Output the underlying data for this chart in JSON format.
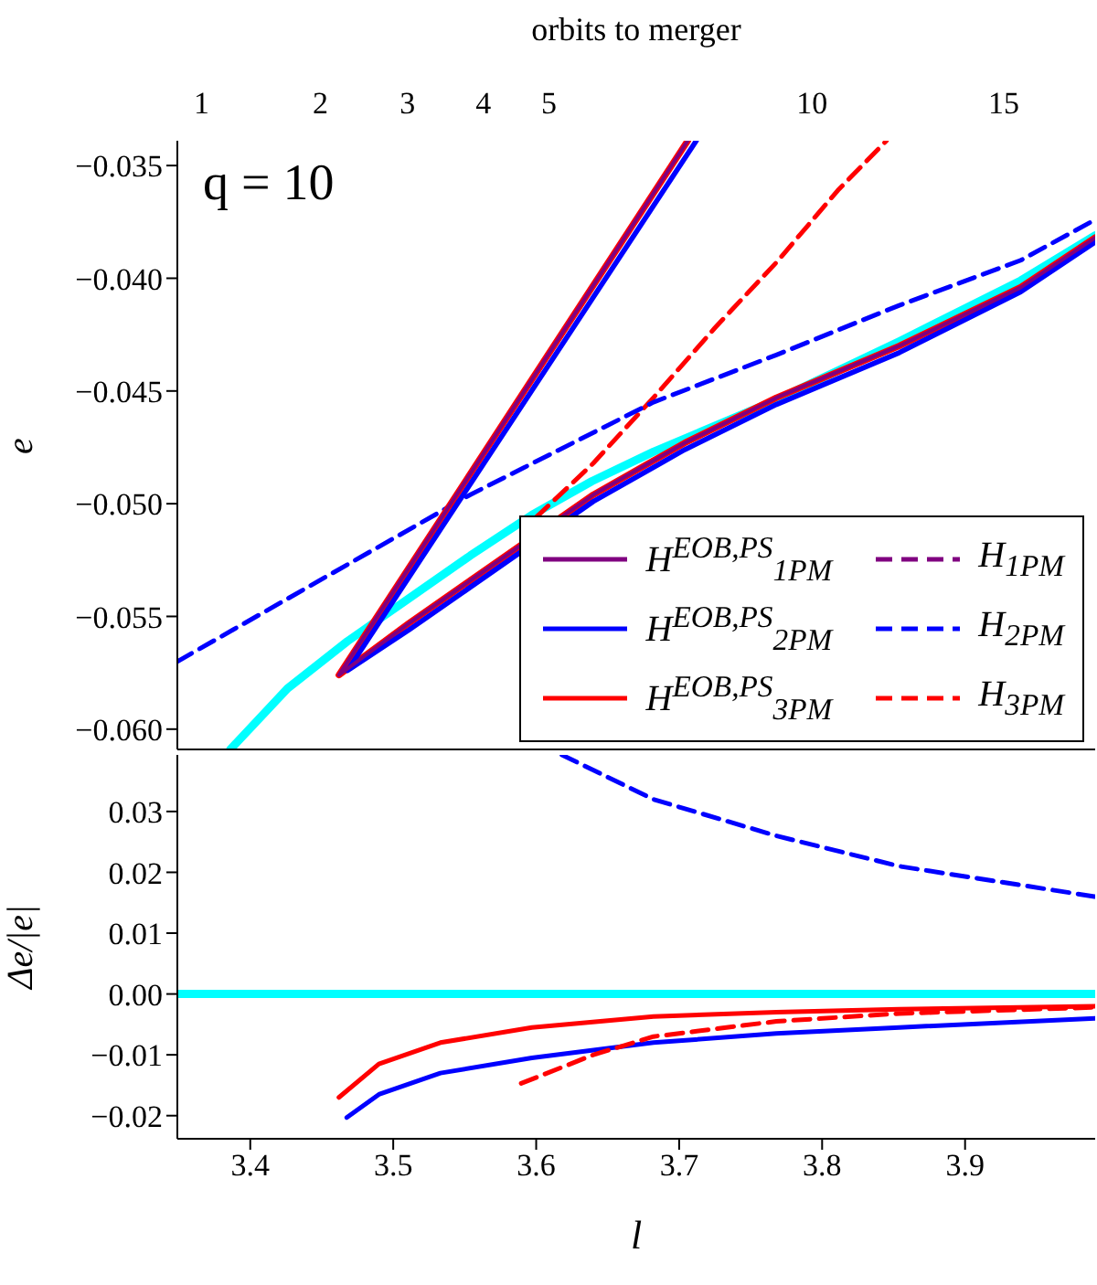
{
  "chart_data": [
    {
      "type": "line",
      "ylabel": "e",
      "x2label": "orbits to merger",
      "annotations": [
        "q = 10",
        "1",
        "2",
        "3",
        "4",
        "5",
        "10",
        "15"
      ],
      "xlim": [
        3.349,
        3.991
      ],
      "xticks": [
        3.4,
        3.5,
        3.6,
        3.7,
        3.8,
        3.9
      ],
      "ylim": [
        -0.0609,
        -0.0339
      ],
      "yticks": [
        {
          "value": -0.035,
          "label": "−0.035"
        },
        {
          "value": -0.04,
          "label": "−0.040"
        },
        {
          "value": -0.045,
          "label": "−0.045"
        },
        {
          "value": -0.05,
          "label": "−0.050"
        },
        {
          "value": -0.055,
          "label": "−0.055"
        },
        {
          "value": -0.06,
          "label": "−0.060"
        }
      ],
      "tick_labels": "y",
      "grid": false,
      "legend": "bottom right",
      "series": [
        {
          "color": "#00ffff",
          "x": [
            3.386,
            3.426,
            3.468,
            3.511,
            3.554,
            3.597,
            3.639,
            3.682,
            3.768,
            3.854,
            3.939,
            3.991
          ],
          "values": [
            -0.0609,
            -0.0582,
            -0.0561,
            -0.0542,
            -0.0523,
            -0.0505,
            -0.049,
            -0.0477,
            -0.0454,
            -0.0428,
            -0.0401,
            -0.0381
          ]
        },
        {
          "name": "H$^{EOB,PS}$$_{1PM}$",
          "color": "#800080",
          "line_style": "solid",
          "x": [
            3.706,
            3.462,
            3.511,
            3.554,
            3.64,
            3.704,
            3.768,
            3.854,
            3.939,
            3.991
          ],
          "values": [
            -0.0339,
            -0.0576,
            -0.0553,
            -0.0534,
            -0.0496,
            -0.0473,
            -0.0453,
            -0.043,
            -0.0404,
            -0.0382
          ]
        },
        {
          "name": "H$^{EOB,PS}$$_{2PM}$",
          "color": "#0000ff",
          "line_style": "solid",
          "x": [
            3.712,
            3.468,
            3.511,
            3.554,
            3.64,
            3.704,
            3.768,
            3.854,
            3.939,
            3.991
          ],
          "values": [
            -0.0339,
            -0.0574,
            -0.0556,
            -0.0537,
            -0.0499,
            -0.0476,
            -0.0456,
            -0.0433,
            -0.0406,
            -0.0384
          ]
        },
        {
          "name": "H$^{EOB,PS}$$_{3PM}$",
          "color": "#ff0000",
          "line_style": "solid",
          "x": [
            3.706,
            3.462,
            3.511,
            3.554,
            3.64,
            3.704,
            3.768,
            3.854,
            3.939,
            3.991
          ],
          "values": [
            -0.0339,
            -0.0576,
            -0.0553,
            -0.0534,
            -0.0496,
            -0.0473,
            -0.0453,
            -0.043,
            -0.0404,
            -0.0382
          ]
        },
        {
          "name": "H$_{1PM}$",
          "color": "#800080",
          "line_style": "dashed"
        },
        {
          "name": "H$_{2PM}$",
          "color": "#0000ff",
          "line_style": "dashed",
          "x": [
            3.349,
            3.468,
            3.554,
            3.682,
            3.768,
            3.854,
            3.939,
            3.991
          ],
          "values": [
            -0.057,
            -0.0527,
            -0.0496,
            -0.0455,
            -0.0434,
            -0.0412,
            -0.0392,
            -0.0374
          ]
        },
        {
          "name": "H$_{3PM}$",
          "color": "#ff0000",
          "line_style": "dashed",
          "x": [
            3.6,
            3.64,
            3.682,
            3.725,
            3.768,
            3.811,
            3.845
          ],
          "values": [
            -0.0506,
            -0.0482,
            -0.0453,
            -0.0422,
            -0.0393,
            -0.0361,
            -0.0339
          ]
        }
      ]
    },
    {
      "type": "line",
      "xlabel": "l",
      "ylabel": "Δe/|e|",
      "xlim": [
        3.349,
        3.991
      ],
      "xticks": [
        3.4,
        3.5,
        3.6,
        3.7,
        3.8,
        3.9
      ],
      "ylim": [
        -0.0238,
        0.0393
      ],
      "yticks": [
        {
          "value": 0.03,
          "label": "0.03"
        },
        {
          "value": 0.02,
          "label": "0.02"
        },
        {
          "value": 0.01,
          "label": "0.01"
        },
        {
          "value": 0,
          "label": "0.00"
        },
        {
          "value": -0.01,
          "label": "−0.01"
        },
        {
          "value": -0.02,
          "label": "−0.02"
        }
      ],
      "grid": false,
      "series": [
        {
          "color": "#00ffff",
          "x": [
            3.349,
            3.991
          ],
          "values": [
            0,
            0
          ]
        },
        {
          "color": "#0000ff",
          "line_style": "solid",
          "x": [
            3.4675,
            3.49,
            3.533,
            3.597,
            3.682,
            3.768,
            3.854,
            3.991
          ],
          "values": [
            -0.0203,
            -0.0165,
            -0.013,
            -0.0105,
            -0.008,
            -0.0065,
            -0.0055,
            -0.004
          ]
        },
        {
          "color": "#ff0000",
          "line_style": "solid",
          "x": [
            3.462,
            3.49,
            3.533,
            3.597,
            3.682,
            3.768,
            3.854,
            3.991
          ],
          "values": [
            -0.017,
            -0.0115,
            -0.008,
            -0.0055,
            -0.0037,
            -0.003,
            -0.0025,
            -0.002
          ]
        },
        {
          "color": "#ff0000",
          "line_style": "dashed",
          "x": [
            3.5895,
            3.64,
            3.682,
            3.768,
            3.854,
            3.991
          ],
          "values": [
            -0.0147,
            -0.01,
            -0.007,
            -0.0045,
            -0.0032,
            -0.0022
          ]
        },
        {
          "color": "#0000ff",
          "line_style": "dashed",
          "x": [
            3.618,
            3.682,
            3.768,
            3.854,
            3.991
          ],
          "values": [
            0.0393,
            0.032,
            0.026,
            0.021,
            0.016
          ]
        }
      ]
    }
  ]
}
